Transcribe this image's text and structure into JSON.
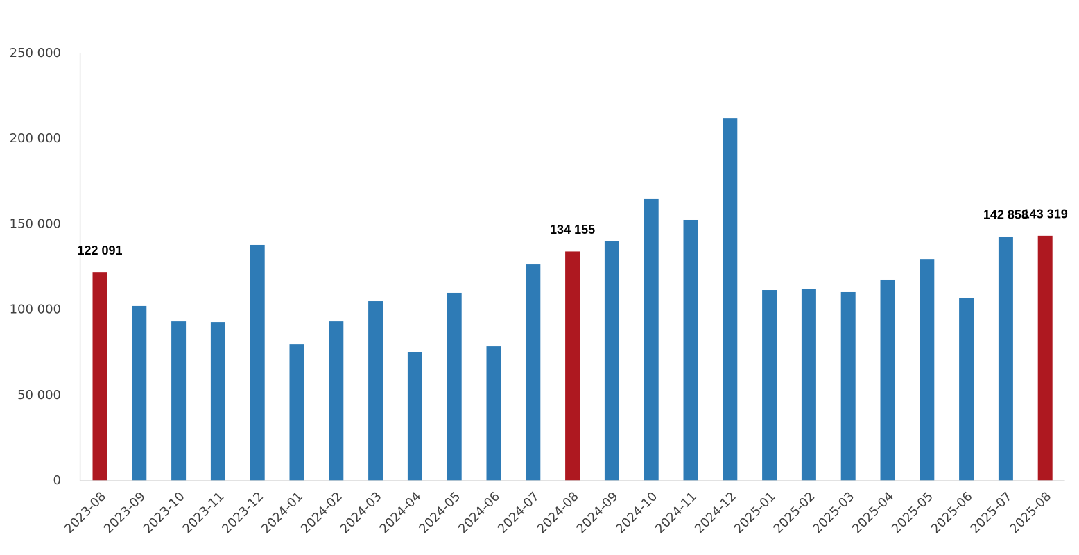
{
  "chart_data": {
    "type": "bar",
    "categories": [
      "2023-08",
      "2023-09",
      "2023-10",
      "2023-11",
      "2023-12",
      "2024-01",
      "2024-02",
      "2024-03",
      "2024-04",
      "2024-05",
      "2024-06",
      "2024-07",
      "2024-08",
      "2024-09",
      "2024-10",
      "2024-11",
      "2024-12",
      "2025-01",
      "2025-02",
      "2025-03",
      "2025-04",
      "2025-05",
      "2025-06",
      "2025-07",
      "2025-08"
    ],
    "values": [
      122091,
      102300,
      93300,
      92900,
      138000,
      79900,
      93300,
      105100,
      75100,
      110000,
      78700,
      126600,
      134155,
      140400,
      164800,
      152600,
      212200,
      111600,
      112400,
      110400,
      117700,
      129400,
      107100,
      142858,
      143319
    ],
    "value_labels": [
      "122 091",
      null,
      null,
      null,
      null,
      null,
      null,
      null,
      null,
      null,
      null,
      null,
      "134 155",
      null,
      null,
      null,
      null,
      null,
      null,
      null,
      null,
      null,
      null,
      "142 858",
      "143 319"
    ],
    "colors": [
      "#ae1820",
      "#2e7bb6",
      "#2e7bb6",
      "#2e7bb6",
      "#2e7bb6",
      "#2e7bb6",
      "#2e7bb6",
      "#2e7bb6",
      "#2e7bb6",
      "#2e7bb6",
      "#2e7bb6",
      "#2e7bb6",
      "#ae1820",
      "#2e7bb6",
      "#2e7bb6",
      "#2e7bb6",
      "#2e7bb6",
      "#2e7bb6",
      "#2e7bb6",
      "#2e7bb6",
      "#2e7bb6",
      "#2e7bb6",
      "#2e7bb6",
      "#2e7bb6",
      "#ae1820"
    ],
    "ylim": [
      0,
      250000
    ],
    "yticks": [
      0,
      {
        "value": 50000,
        "label": "50 000"
      },
      {
        "value": 100000,
        "label": "100 000"
      },
      {
        "value": 150000,
        "label": "150 000"
      },
      {
        "value": 200000,
        "label": "200 000"
      },
      {
        "value": 250000,
        "label": "250 000"
      }
    ],
    "grid": false
  }
}
